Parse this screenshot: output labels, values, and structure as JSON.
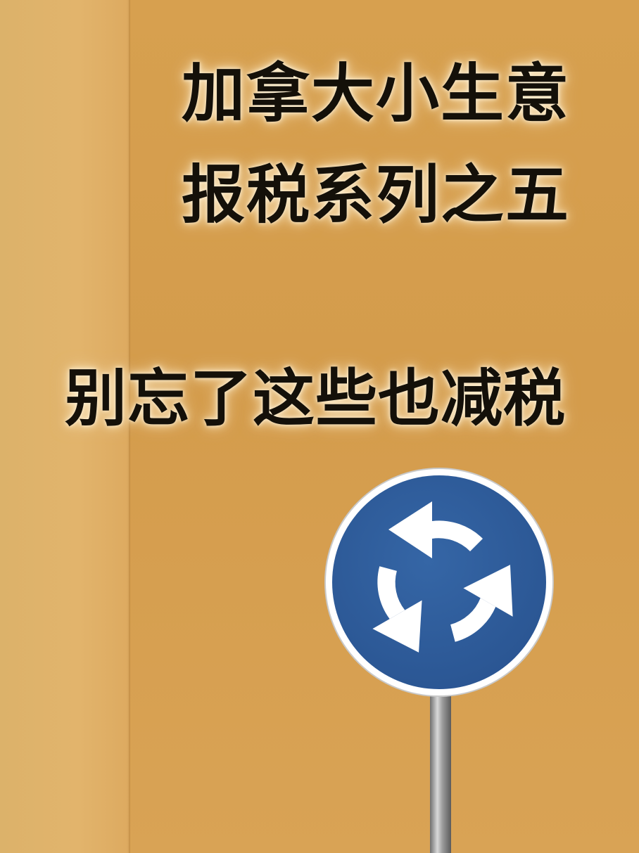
{
  "poster": {
    "title_line_1": "加拿大小生意",
    "title_line_2": "报税系列之五",
    "subtitle": "别忘了这些也减税"
  },
  "colors": {
    "background_left": "#e0b26a",
    "background_right": "#d69f4e",
    "text": "#141009",
    "sign_blue": "#2f5f9e",
    "sign_white": "#ffffff"
  },
  "icons": {
    "sign": "roundabout-sign-icon"
  }
}
